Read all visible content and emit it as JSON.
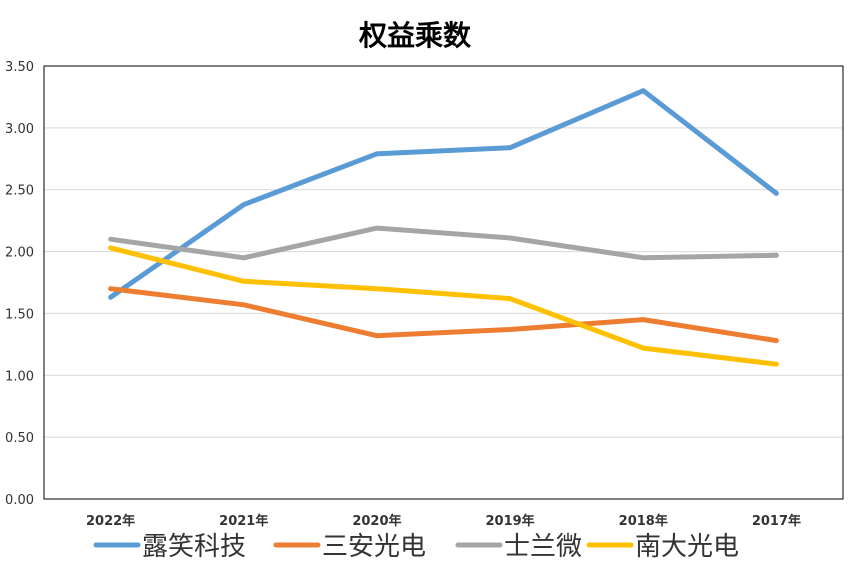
{
  "chart_data": {
    "type": "line",
    "title": "权益乘数",
    "xlabel": "",
    "ylabel": "",
    "categories": [
      "2022年",
      "2021年",
      "2020年",
      "2019年",
      "2018年",
      "2017年"
    ],
    "ylim": [
      0,
      3.5
    ],
    "yticks": [
      "0.00",
      "0.50",
      "1.00",
      "1.50",
      "2.00",
      "2.50",
      "3.00",
      "3.50"
    ],
    "grid": true,
    "legend_position": "bottom",
    "series": [
      {
        "name": "露笑科技",
        "color": "#5B9BD5",
        "values": [
          1.63,
          2.38,
          2.79,
          2.84,
          3.3,
          2.47
        ]
      },
      {
        "name": "三安光电",
        "color": "#ED7D31",
        "values": [
          1.7,
          1.57,
          1.32,
          1.37,
          1.45,
          1.28
        ]
      },
      {
        "name": "士兰微",
        "color": "#A5A5A5",
        "values": [
          2.1,
          1.95,
          2.19,
          2.11,
          1.95,
          1.97
        ]
      },
      {
        "name": "南大光电",
        "color": "#FFC000",
        "values": [
          2.03,
          1.76,
          1.7,
          1.62,
          1.22,
          1.09
        ]
      }
    ]
  }
}
